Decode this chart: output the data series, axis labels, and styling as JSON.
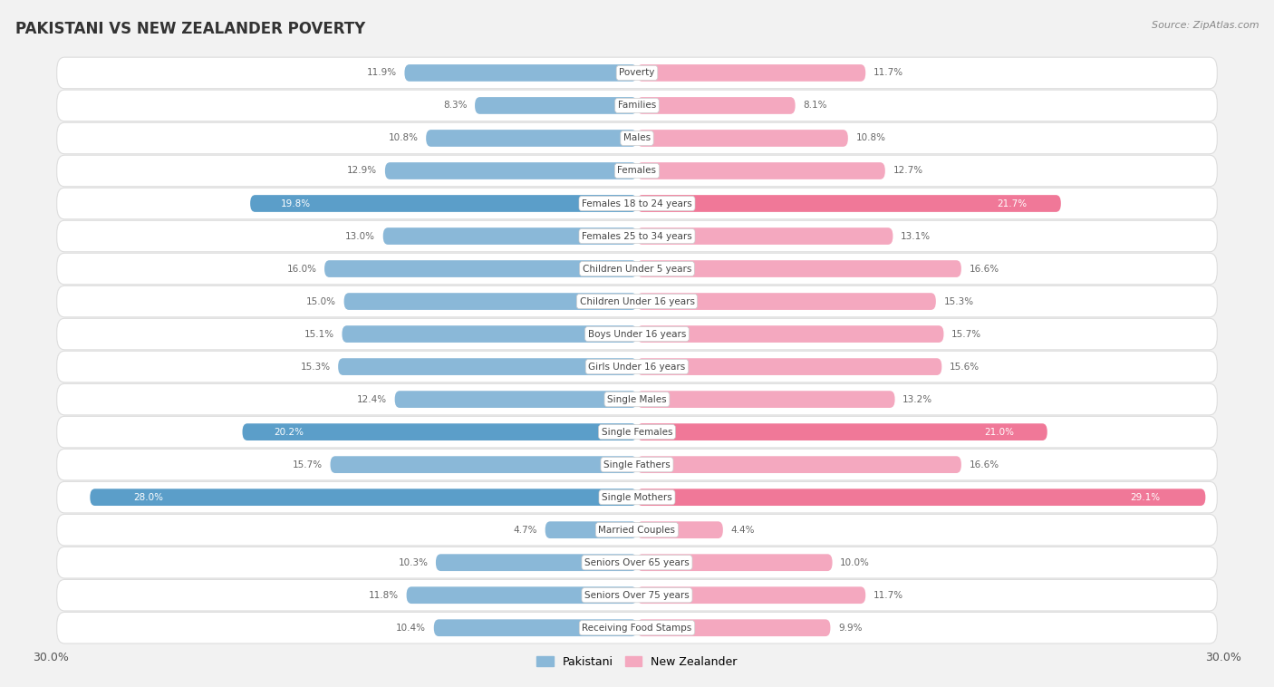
{
  "title": "PAKISTANI VS NEW ZEALANDER POVERTY",
  "source": "Source: ZipAtlas.com",
  "categories": [
    "Poverty",
    "Families",
    "Males",
    "Females",
    "Females 18 to 24 years",
    "Females 25 to 34 years",
    "Children Under 5 years",
    "Children Under 16 years",
    "Boys Under 16 years",
    "Girls Under 16 years",
    "Single Males",
    "Single Females",
    "Single Fathers",
    "Single Mothers",
    "Married Couples",
    "Seniors Over 65 years",
    "Seniors Over 75 years",
    "Receiving Food Stamps"
  ],
  "pakistani": [
    11.9,
    8.3,
    10.8,
    12.9,
    19.8,
    13.0,
    16.0,
    15.0,
    15.1,
    15.3,
    12.4,
    20.2,
    15.7,
    28.0,
    4.7,
    10.3,
    11.8,
    10.4
  ],
  "new_zealander": [
    11.7,
    8.1,
    10.8,
    12.7,
    21.7,
    13.1,
    16.6,
    15.3,
    15.7,
    15.6,
    13.2,
    21.0,
    16.6,
    29.1,
    4.4,
    10.0,
    11.7,
    9.9
  ],
  "pakistani_color": "#8ab8d8",
  "new_zealander_color": "#f4a8bf",
  "pakistani_highlight_color": "#5b9ec9",
  "new_zealander_highlight_color": "#f07898",
  "highlight_rows": [
    4,
    11,
    13
  ],
  "background_color": "#f2f2f2",
  "row_bg_color": "#ffffff",
  "row_border_color": "#dddddd",
  "max_value": 30.0,
  "legend_pakistani": "Pakistani",
  "legend_new_zealander": "New Zealander",
  "value_color_normal": "#666666",
  "value_color_highlight": "#ffffff",
  "label_bg_color": "#ffffff",
  "label_text_color": "#444444"
}
